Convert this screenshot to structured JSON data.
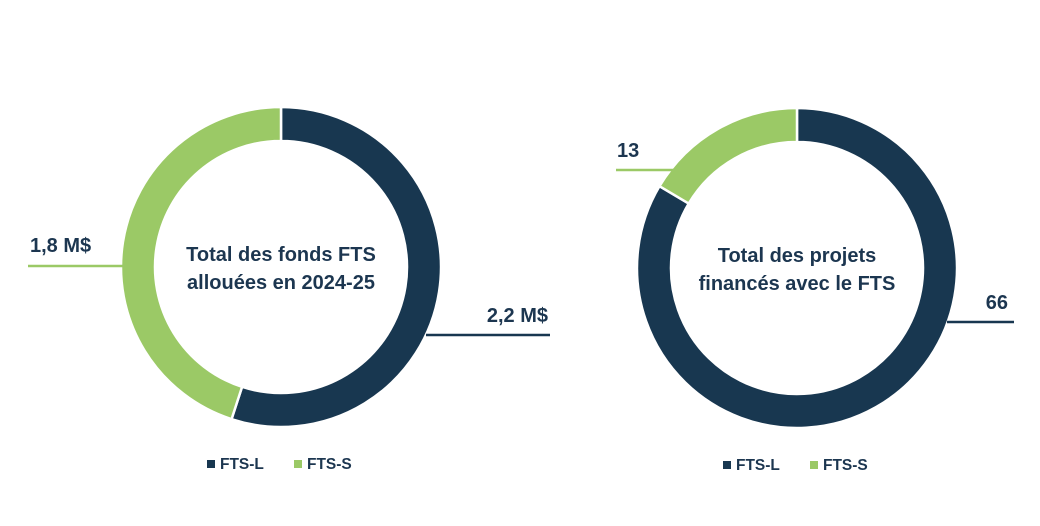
{
  "colors": {
    "fts_l": "#183750",
    "fts_s": "#9bc966",
    "text": "#1c3650",
    "background": "#ffffff"
  },
  "chart_data": [
    {
      "type": "pie",
      "variant": "donut",
      "title_lines": [
        "Total des fonds FTS",
        "allouées en 2024-25"
      ],
      "categories": [
        "FTS-L",
        "FTS-S"
      ],
      "values": [
        2.2,
        1.8
      ],
      "unit": "M$",
      "data_labels": [
        "2,2 M$",
        "1,8 M$"
      ],
      "legend": [
        "FTS-L",
        "FTS-S"
      ],
      "legend_position": "bottom"
    },
    {
      "type": "pie",
      "variant": "donut",
      "title_lines": [
        "Total des projets",
        "financés avec le FTS"
      ],
      "categories": [
        "FTS-L",
        "FTS-S"
      ],
      "values": [
        66,
        13
      ],
      "unit": "",
      "data_labels": [
        "66",
        "13"
      ],
      "legend": [
        "FTS-L",
        "FTS-S"
      ],
      "legend_position": "bottom"
    }
  ]
}
